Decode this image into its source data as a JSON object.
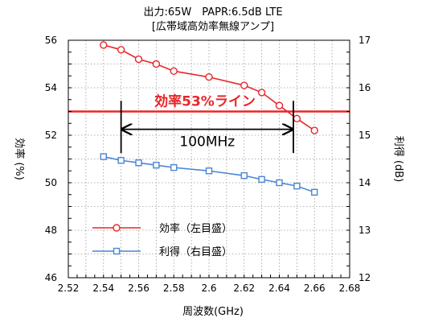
{
  "chart_data": {
    "type": "line",
    "title": "出力:65W　PAPR:6.5dB LTE",
    "subtitle": "[広帯域高効率無線アンプ]",
    "xlabel": "周波数(GHz)",
    "ylabel_left": "効率 (%)",
    "ylabel_right": "利得 (dB)",
    "xlim": [
      2.52,
      2.68
    ],
    "xticks": [
      "2.52",
      "2.54",
      "2.56",
      "2.58",
      "2.6",
      "2.62",
      "2.64",
      "2.66",
      "2.68"
    ],
    "ylim_left": [
      46,
      56
    ],
    "yticks_left": [
      "46",
      "48",
      "50",
      "52",
      "54",
      "56"
    ],
    "ylim_right": [
      12,
      17
    ],
    "yticks_right": [
      "12",
      "13",
      "14",
      "15",
      "16",
      "17"
    ],
    "grid": true,
    "series": [
      {
        "name": "効率（左目盛）",
        "axis": "left",
        "color": "#e8262a",
        "marker": "circle",
        "x": [
          2.54,
          2.55,
          2.56,
          2.57,
          2.58,
          2.6,
          2.62,
          2.63,
          2.64,
          2.65,
          2.66
        ],
        "values": [
          55.8,
          55.6,
          55.2,
          55.0,
          54.7,
          54.45,
          54.1,
          53.8,
          53.25,
          52.7,
          52.2
        ]
      },
      {
        "name": "利得（右目盛）",
        "axis": "right",
        "color": "#4a86d4",
        "marker": "square",
        "x": [
          2.54,
          2.55,
          2.56,
          2.57,
          2.58,
          2.6,
          2.62,
          2.63,
          2.64,
          2.65,
          2.66
        ],
        "values": [
          14.55,
          14.47,
          14.42,
          14.37,
          14.32,
          14.25,
          14.15,
          14.07,
          14.0,
          13.93,
          13.8
        ]
      }
    ],
    "reference_line": {
      "label": "効率53%ライン",
      "axis": "left",
      "y": 53,
      "color": "#e8262a"
    },
    "bandwidth_annotation": {
      "label": "100MHz",
      "x_from": 2.55,
      "x_to": 2.648
    },
    "legend": {
      "placement": "bottom-left"
    }
  }
}
